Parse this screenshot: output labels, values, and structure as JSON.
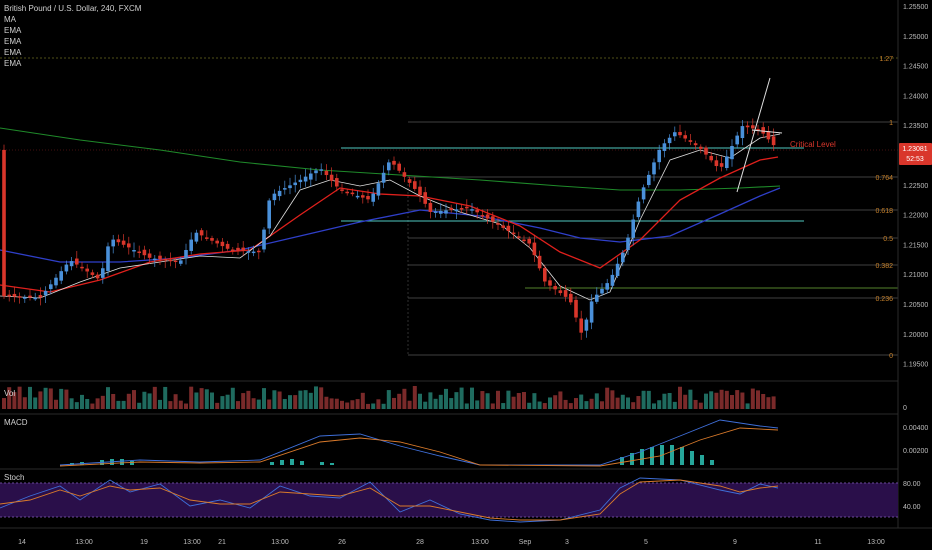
{
  "header": {
    "title": "British Pound / U.S. Dollar, 240, FXCM",
    "indicators": [
      "MA",
      "EMA",
      "EMA",
      "EMA",
      "EMA"
    ]
  },
  "price_axis": {
    "ticks": [
      "1.25500",
      "1.25000",
      "1.24500",
      "1.24000",
      "1.23500",
      "1.23000",
      "1.22500",
      "1.22000",
      "1.21500",
      "1.21000",
      "1.20500",
      "1.20000",
      "1.19500"
    ],
    "last_price": "1.23081",
    "countdown": "52:53"
  },
  "time_axis": {
    "ticks": [
      "14",
      "13:00",
      "19",
      "13:00",
      "21",
      "13:00",
      "26",
      "28",
      "13:00",
      "Sep",
      "3",
      "5",
      "9",
      "11",
      "13:00"
    ]
  },
  "fibonacci": {
    "levels": [
      "1.27",
      "1",
      "0.764",
      "0.618",
      "0.5",
      "0.382",
      "0.236",
      "0"
    ]
  },
  "annotations": {
    "critical_level": "Critical Level"
  },
  "panes": {
    "volume": {
      "label": "Vol",
      "axis": [
        "0"
      ]
    },
    "macd": {
      "label": "MACD",
      "axis": [
        "0.00400",
        "0.00200"
      ]
    },
    "stoch": {
      "label": "Stoch",
      "axis": [
        "80.00",
        "40.00"
      ]
    }
  },
  "colors": {
    "up": "#4a90d9",
    "down": "#d9362b",
    "ema_green": "#1f8a2a",
    "ema_blue": "#2f3fc9",
    "ema_red": "#e0201c",
    "ma_white": "#e0e0e0",
    "fib": "#c8822b",
    "level": "#4fc7c0",
    "macd_hist": "#26a69a",
    "stoch_bg": "#2a0f4a"
  }
}
